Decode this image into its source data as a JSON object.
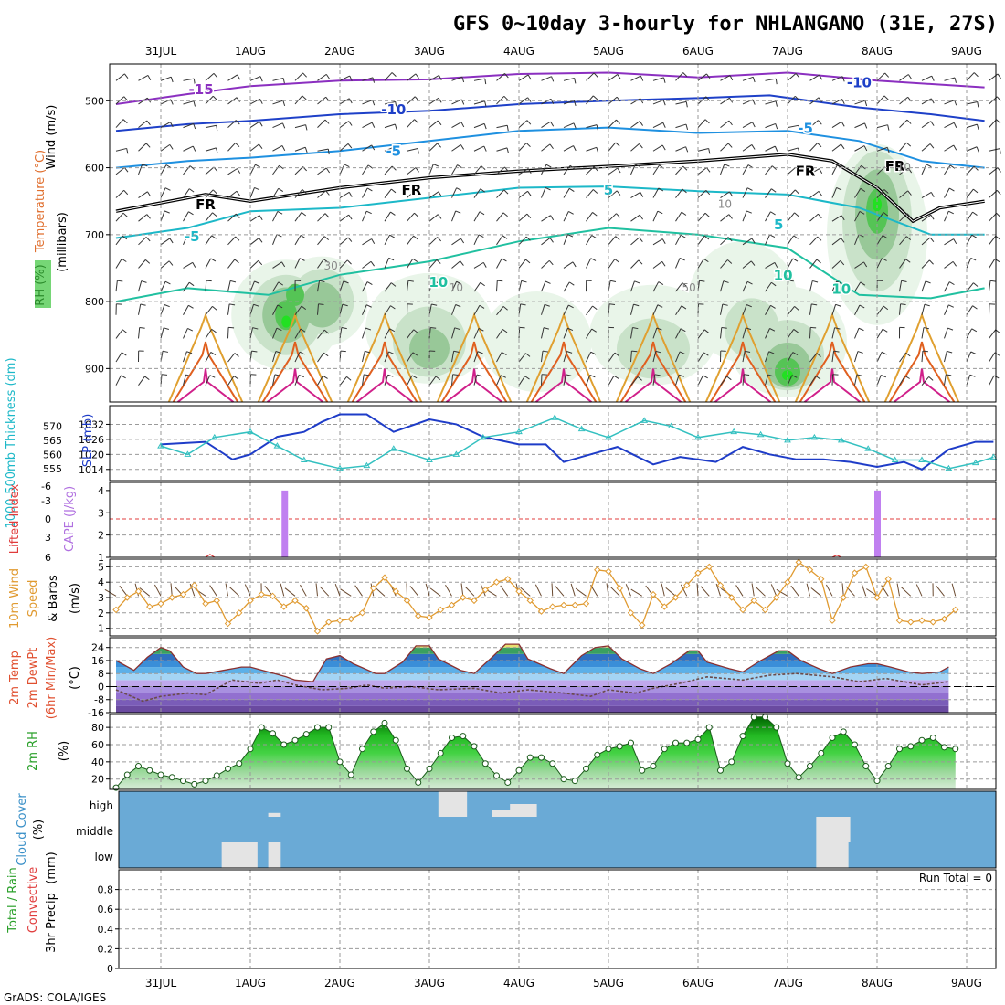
{
  "title": "GFS 0~10day 3-hourly for NHLANGANO (31E, 27S)",
  "footer": "GrADS: COLA/IGES",
  "colors": {
    "rh_green": "#3cc43c",
    "temp_cold": "#7a2fc0",
    "temp_contour": "#2060d0",
    "slp_line": "#1e3cc8",
    "thickness_line": "#33c0c0",
    "cape_bar": "#c080f0",
    "lifted_index": "#e03c3c",
    "wind_speed": "#e09a30",
    "temp_fill": "#4aa0dc",
    "cloud_bg": "#6aaad6",
    "cloud_fill": "#e4e4e4"
  },
  "chart_data": [
    {
      "id": "upper_air",
      "type": "heatmap",
      "ylabel_parts": [
        "RH (%)",
        "Temperature (°C)",
        "Wind (m/s)"
      ],
      "yaxis_label": "(millibars)",
      "yticks": [
        500,
        600,
        700,
        800,
        900
      ],
      "ylim": [
        445,
        950
      ],
      "contour_labels": [
        "-15",
        "-10",
        "-10",
        "-5",
        "-5",
        "-5",
        "5",
        "5",
        "10",
        "10",
        "10",
        "FR",
        "FR",
        "FR",
        "FR",
        "30",
        "10",
        "10",
        "50",
        "10"
      ],
      "rh_cores": [
        {
          "day": 1.4,
          "p": 820,
          "rh": 90
        },
        {
          "day": 7.0,
          "p": 910,
          "rh": 90
        },
        {
          "day": 8.0,
          "p": 660,
          "rh": 90
        },
        {
          "day": 1.8,
          "p": 800,
          "rh": 70
        },
        {
          "day": 3.0,
          "p": 870,
          "rh": 70
        },
        {
          "day": 5.5,
          "p": 880,
          "rh": 70
        }
      ]
    },
    {
      "id": "slp_thickness",
      "type": "line",
      "ylabel_left": "1000-500mb Thickness (dm)",
      "ylabel_right": "SLP (mb)",
      "yticks_left": [
        555,
        560,
        565,
        570
      ],
      "yticks_right": [
        1014,
        1020,
        1026,
        1032
      ],
      "series": [
        {
          "name": "SLP (mb)",
          "x": [
            0,
            0.5,
            0.8,
            1.0,
            1.3,
            1.6,
            1.8,
            2.0,
            2.3,
            2.6,
            3.0,
            3.3,
            3.6,
            4.0,
            4.3,
            4.5,
            4.8,
            5.1,
            5.5,
            5.8,
            6.2,
            6.5,
            6.8,
            7.1,
            7.4,
            7.7,
            8.0,
            8.3,
            8.5,
            8.8,
            9.1,
            9.3
          ],
          "values": [
            1024,
            1025,
            1018,
            1020,
            1027,
            1029,
            1033,
            1036,
            1036,
            1029,
            1034,
            1032,
            1027,
            1024,
            1024,
            1017,
            1020,
            1023,
            1016,
            1019,
            1017,
            1023,
            1020,
            1018,
            1018,
            1017,
            1015,
            1017,
            1014,
            1022,
            1025,
            1025
          ]
        },
        {
          "name": "1000-500mb Thickness (dm)",
          "x": [
            0,
            0.3,
            0.6,
            1.0,
            1.3,
            1.6,
            2.0,
            2.3,
            2.6,
            3.0,
            3.3,
            3.6,
            4.0,
            4.4,
            4.7,
            5.0,
            5.4,
            5.7,
            6.0,
            6.4,
            6.7,
            7.0,
            7.3,
            7.6,
            7.9,
            8.2,
            8.5,
            8.8,
            9.1,
            9.3
          ],
          "values": [
            563,
            560,
            566,
            568,
            563,
            558,
            555,
            556,
            562,
            558,
            560,
            566,
            568,
            573,
            569,
            566,
            572,
            570,
            566,
            568,
            567,
            565,
            566,
            565,
            562,
            558,
            558,
            555,
            557,
            559
          ]
        }
      ]
    },
    {
      "id": "cape_li",
      "type": "bar",
      "ylabel_left": "Lifted Index",
      "ylabel_right": "CAPE (J/kg)",
      "yticks_left": [
        "-6",
        "-3",
        "0",
        "3",
        "6"
      ],
      "yticks_right": [
        "4",
        "3",
        "2",
        "1"
      ],
      "series": [
        {
          "name": "CAPE (J/kg)",
          "x": [
            1.38,
            8.0
          ],
          "values": [
            4.0,
            4.0
          ]
        },
        {
          "name": "Lifted Index",
          "x": [
            0.5,
            0.55,
            0.6,
            7.5,
            7.55,
            7.6
          ],
          "values": [
            6,
            5.6,
            6,
            6,
            5.7,
            6
          ]
        }
      ]
    },
    {
      "id": "wind10m",
      "type": "line",
      "ylabel_lines": [
        "10m Wind",
        "Speed",
        "& Barbs"
      ],
      "yunit": "(m/s)",
      "yticks": [
        1,
        2,
        3,
        4,
        5
      ],
      "ylim": [
        0.5,
        5.5
      ],
      "x": [
        0,
        0.125,
        0.25,
        0.375,
        0.5,
        0.625,
        0.75,
        0.875,
        1.0,
        1.125,
        1.25,
        1.375,
        1.5,
        1.625,
        1.75,
        1.875,
        2.0,
        2.125,
        2.25,
        2.375,
        2.5,
        2.625,
        2.75,
        2.875,
        3.0,
        3.125,
        3.25,
        3.375,
        3.5,
        3.625,
        3.75,
        3.875,
        4.0,
        4.125,
        4.25,
        4.375,
        4.5,
        4.625,
        4.75,
        4.875,
        5.0,
        5.125,
        5.25,
        5.375,
        5.5,
        5.625,
        5.75,
        5.875,
        6.0,
        6.125,
        6.25,
        6.375,
        6.5,
        6.625,
        6.75,
        6.875,
        7.0,
        7.125,
        7.25,
        7.375,
        7.5,
        7.625,
        7.75,
        7.875,
        8.0,
        8.125,
        8.25,
        8.375,
        8.5,
        8.625,
        8.75,
        8.875,
        9.0,
        9.125,
        9.25,
        9.375
      ],
      "values": [
        2.2,
        3.0,
        3.4,
        2.4,
        2.6,
        3.0,
        3.2,
        3.8,
        2.6,
        2.8,
        1.3,
        2.0,
        2.8,
        3.2,
        3.1,
        2.4,
        2.8,
        2.3,
        0.8,
        1.4,
        1.5,
        1.6,
        2.0,
        3.6,
        4.3,
        3.4,
        2.8,
        1.8,
        1.7,
        2.2,
        2.5,
        3.0,
        2.8,
        3.5,
        4.0,
        4.2,
        3.4,
        2.8,
        2.1,
        2.4,
        2.5,
        2.5,
        2.6,
        4.8,
        4.7,
        3.6,
        2.0,
        1.2,
        3.2,
        2.4,
        3.0,
        3.8,
        4.6,
        5.0,
        3.8,
        3.0,
        2.2,
        2.8,
        2.2,
        3.0,
        4.0,
        5.3,
        4.8,
        4.2,
        1.5,
        3.0,
        4.6,
        5.0,
        3.0,
        4.2,
        1.5,
        1.4,
        1.5,
        1.4,
        1.6,
        2.2
      ]
    },
    {
      "id": "temp2m",
      "type": "area",
      "ylabel_lines": [
        "2m Temp",
        "2m DewPt",
        "(6hr Min/Max)"
      ],
      "yunit": "(°C)",
      "yticks": [
        -16,
        -8,
        0,
        8,
        16,
        24
      ],
      "ylim": [
        -16,
        30
      ],
      "series": [
        {
          "name": "2m Temp",
          "x": [
            0,
            0.2,
            0.35,
            0.5,
            0.6,
            0.75,
            0.9,
            1.0,
            1.2,
            1.4,
            1.5,
            1.7,
            1.9,
            2.0,
            2.2,
            2.35,
            2.5,
            2.65,
            2.9,
            3.0,
            3.2,
            3.35,
            3.5,
            3.6,
            3.85,
            4.0,
            4.2,
            4.35,
            4.5,
            4.6,
            4.85,
            5.0,
            5.2,
            5.35,
            5.5,
            5.65,
            5.85,
            6.0,
            6.2,
            6.4,
            6.5,
            6.6,
            6.85,
            7.0,
            7.2,
            7.4,
            7.5,
            7.65,
            7.85,
            8.0,
            8.2,
            8.4,
            8.5,
            8.65,
            8.85,
            9.0,
            9.2,
            9.3
          ],
          "values": [
            16,
            10,
            18,
            24,
            22,
            12,
            8,
            8,
            10,
            12,
            12,
            9,
            6,
            4,
            3,
            17,
            19,
            14,
            8,
            8,
            15,
            25,
            25,
            17,
            10,
            8,
            18,
            26,
            26,
            17,
            11,
            8,
            19,
            24,
            25,
            17,
            11,
            8,
            14,
            22,
            22,
            15,
            11,
            9,
            16,
            22,
            22,
            16,
            11,
            8,
            12,
            14,
            14,
            12,
            9,
            8,
            9,
            12
          ]
        },
        {
          "name": "2m DewPt",
          "x": [
            0,
            0.3,
            0.5,
            0.8,
            1.0,
            1.3,
            1.6,
            1.8,
            2.0,
            2.3,
            2.6,
            2.8,
            3.0,
            3.3,
            3.6,
            4.0,
            4.3,
            4.6,
            5.0,
            5.3,
            5.5,
            5.8,
            6.0,
            6.3,
            6.6,
            7.0,
            7.3,
            7.6,
            8.0,
            8.3,
            8.6,
            9.0,
            9.3
          ],
          "values": [
            -2,
            -9,
            -6,
            -4,
            -5,
            4,
            2,
            4,
            1,
            -2,
            -1,
            1,
            -1,
            0,
            -2,
            -1,
            -4,
            -2,
            -4,
            -6,
            -2,
            -4,
            -1,
            2,
            6,
            4,
            7,
            8,
            6,
            3,
            5,
            1,
            3
          ]
        }
      ]
    },
    {
      "id": "rh2m",
      "type": "area",
      "ylabel": "2m RH",
      "yunit": "(%)",
      "yticks": [
        20,
        40,
        60,
        80
      ],
      "ylim": [
        8,
        95
      ],
      "x": [
        0,
        0.125,
        0.25,
        0.375,
        0.5,
        0.625,
        0.75,
        0.875,
        1.0,
        1.125,
        1.25,
        1.375,
        1.5,
        1.625,
        1.75,
        1.875,
        2.0,
        2.125,
        2.25,
        2.375,
        2.5,
        2.625,
        2.75,
        2.875,
        3.0,
        3.125,
        3.25,
        3.375,
        3.5,
        3.625,
        3.75,
        3.875,
        4.0,
        4.125,
        4.25,
        4.375,
        4.5,
        4.625,
        4.75,
        4.875,
        5.0,
        5.125,
        5.25,
        5.375,
        5.5,
        5.625,
        5.75,
        5.875,
        6.0,
        6.125,
        6.25,
        6.375,
        6.5,
        6.625,
        6.75,
        6.875,
        7.0,
        7.125,
        7.25,
        7.375,
        7.5,
        7.625,
        7.75,
        7.875,
        8.0,
        8.125,
        8.25,
        8.375,
        8.5,
        8.625,
        8.75,
        8.875,
        9.0,
        9.125,
        9.25,
        9.375
      ],
      "values": [
        10,
        25,
        35,
        30,
        25,
        22,
        18,
        14,
        18,
        24,
        32,
        38,
        55,
        80,
        73,
        60,
        65,
        72,
        80,
        80,
        40,
        25,
        55,
        75,
        85,
        65,
        32,
        16,
        32,
        50,
        68,
        70,
        58,
        38,
        24,
        16,
        30,
        45,
        45,
        38,
        20,
        18,
        32,
        48,
        55,
        58,
        62,
        30,
        35,
        55,
        62,
        62,
        66,
        80,
        30,
        40,
        70,
        92,
        92,
        80,
        38,
        22,
        35,
        50,
        68,
        75,
        60,
        35,
        18,
        35,
        55,
        58,
        65,
        68,
        57,
        55
      ]
    },
    {
      "id": "cloud",
      "type": "heatmap",
      "ylabel": "Cloud Cover",
      "yunit": "(%)",
      "ytick_labels": [
        "high",
        "middle",
        "low"
      ],
      "cells": [
        {
          "level": "low",
          "day0": 1.18,
          "day1": 1.58,
          "cover": 100
        },
        {
          "level": "low",
          "day0": 1.32,
          "day1": 1.42,
          "cover": 100
        },
        {
          "level": "low",
          "day0": 1.7,
          "day1": 1.84,
          "cover": 100
        },
        {
          "level": "high",
          "day0": 1.7,
          "day1": 1.84,
          "cover": 15
        },
        {
          "level": "high",
          "day0": 3.6,
          "day1": 3.92,
          "cover": 100
        },
        {
          "level": "high",
          "day0": 4.2,
          "day1": 4.6,
          "cover": 25
        },
        {
          "level": "high",
          "day0": 4.4,
          "day1": 4.7,
          "cover": 50
        },
        {
          "level": "middle",
          "day0": 7.82,
          "day1": 8.2,
          "cover": 100
        },
        {
          "level": "low",
          "day0": 7.82,
          "day1": 8.18,
          "cover": 100
        }
      ]
    },
    {
      "id": "precip",
      "type": "bar",
      "ylabel_left": [
        "Total / Rain",
        "Convective"
      ],
      "ylabel": "3hr Precip",
      "yunit": "(mm)",
      "yticks": [
        "0",
        "0.2",
        "0.4",
        "0.6",
        "0.8"
      ],
      "ylim": [
        0,
        1
      ],
      "values": [],
      "annotation": "Run Total = 0"
    }
  ],
  "days": [
    "31JUL",
    "1AUG",
    "2AUG",
    "3AUG",
    "4AUG",
    "5AUG",
    "6AUG",
    "7AUG",
    "8AUG",
    "9AUG"
  ]
}
